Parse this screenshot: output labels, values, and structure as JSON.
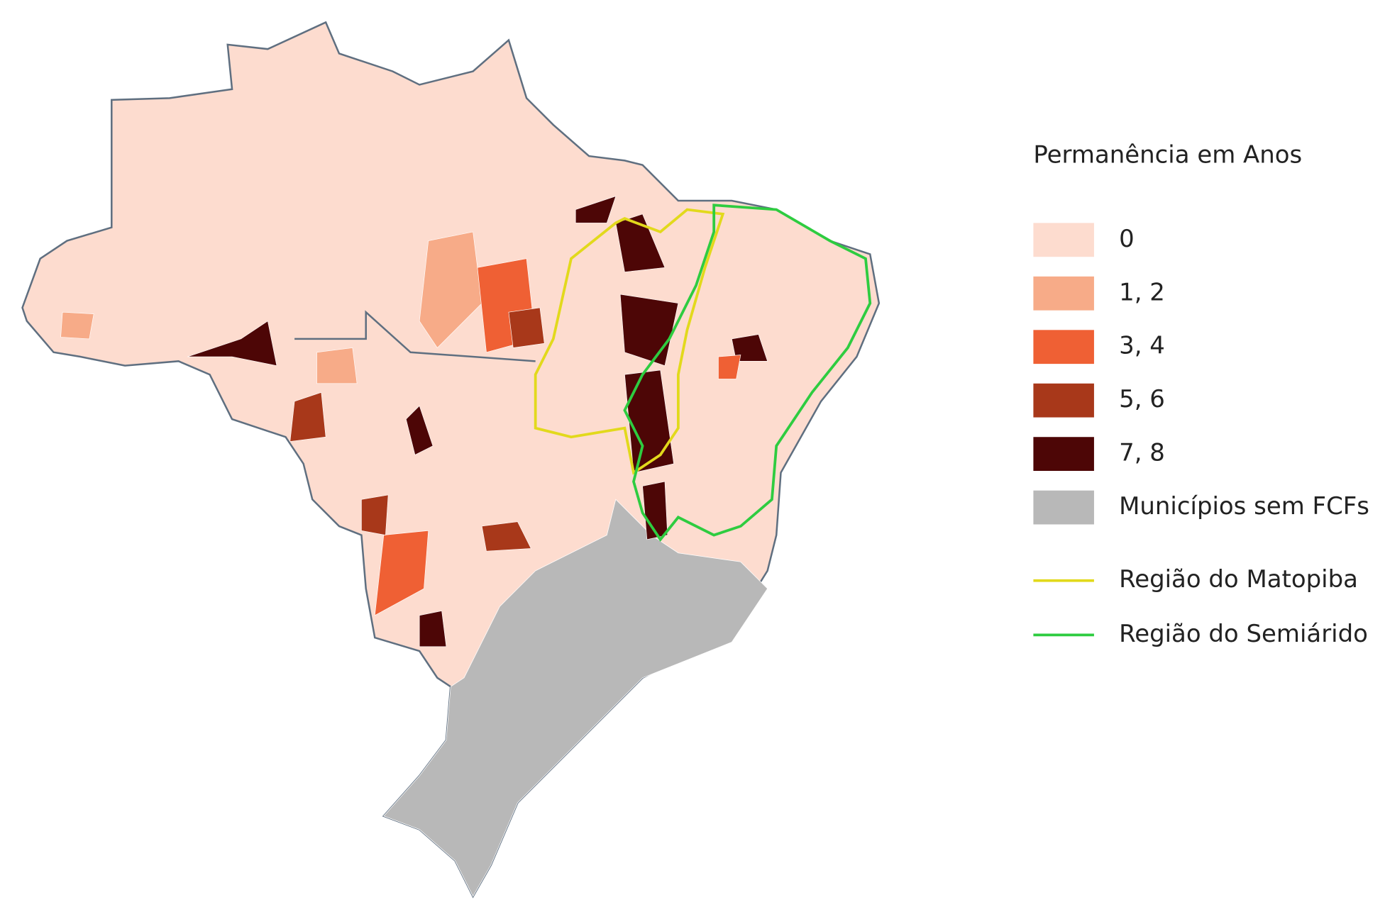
{
  "legend": {
    "title": "Permanência em Anos",
    "items": [
      {
        "label": "0",
        "color": "#fddccf",
        "kind": "box"
      },
      {
        "label": "1, 2",
        "color": "#f7ab88",
        "kind": "box"
      },
      {
        "label": "3, 4",
        "color": "#ef6034",
        "kind": "box"
      },
      {
        "label": "5, 6",
        "color": "#a8381a",
        "kind": "box"
      },
      {
        "label": "7, 8",
        "color": "#4d0606",
        "kind": "box"
      },
      {
        "label": "Municípios sem FCFs",
        "color": "#b8b8b8",
        "kind": "box"
      },
      {
        "label": "Região do Matopiba",
        "color": "#e2d91c",
        "kind": "line"
      },
      {
        "label": "Região do Semiárido",
        "color": "#2ecc40",
        "kind": "line"
      }
    ]
  }
}
